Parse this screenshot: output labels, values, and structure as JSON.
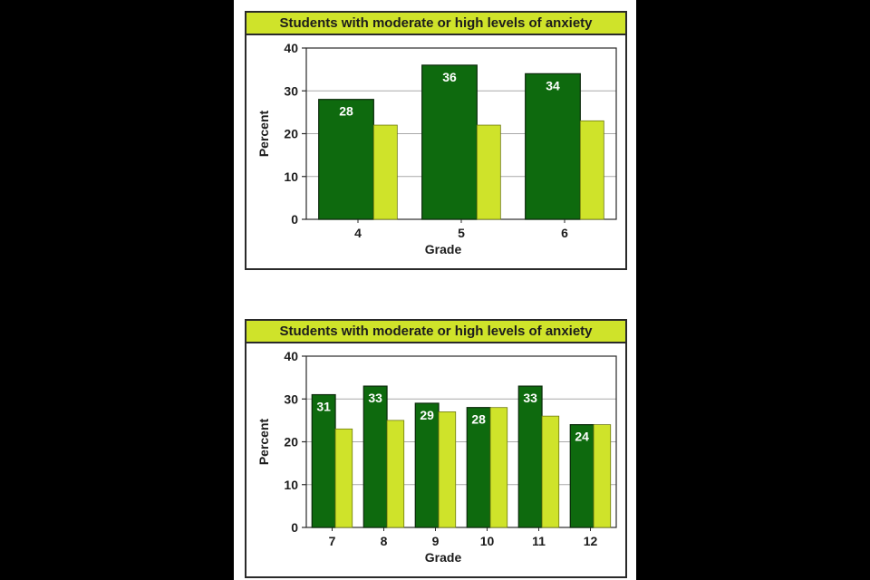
{
  "colors": {
    "series_dark": "#0e6a0e",
    "series_light": "#cfe32a",
    "title_bg": "#cfe32a"
  },
  "chart_data": [
    {
      "type": "bar",
      "title": "Students with moderate or high levels of anxiety",
      "xlabel": "Grade",
      "ylabel": "Percent",
      "ylim": [
        0,
        40
      ],
      "yticks": [
        0,
        10,
        20,
        30,
        40
      ],
      "grid": true,
      "categories": [
        "4",
        "5",
        "6"
      ],
      "series": [
        {
          "values": [
            28,
            36,
            34
          ],
          "labels": [
            "28",
            "36",
            "34"
          ]
        },
        {
          "values": [
            22,
            22,
            23
          ]
        }
      ]
    },
    {
      "type": "bar",
      "title": "Students with moderate or high levels of anxiety",
      "xlabel": "Grade",
      "ylabel": "Percent",
      "ylim": [
        0,
        40
      ],
      "yticks": [
        0,
        10,
        20,
        30,
        40
      ],
      "grid": true,
      "categories": [
        "7",
        "8",
        "9",
        "10",
        "11",
        "12"
      ],
      "series": [
        {
          "values": [
            31,
            33,
            29,
            28,
            33,
            24
          ],
          "labels": [
            "31",
            "33",
            "29",
            "28",
            "33",
            "24"
          ]
        },
        {
          "values": [
            23,
            25,
            27,
            28,
            26,
            24
          ]
        }
      ]
    }
  ]
}
